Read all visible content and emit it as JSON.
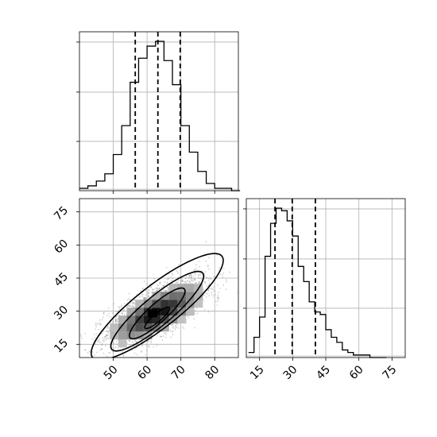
{
  "colors": {
    "background": "#ffffff",
    "line": "#000000",
    "grid": "#b0b0b0",
    "frame": "#000000",
    "scatter": "#7a7a7a"
  },
  "chart_data": [
    {
      "type": "histogram",
      "panel": "top-left",
      "variable_index": 0,
      "grid": true,
      "xlim": [
        40,
        87
      ],
      "x_ticks": [
        50,
        60,
        70,
        80
      ],
      "y_tick_labels_shown": false,
      "bin_edges": [
        40,
        42.5,
        45,
        47.5,
        50,
        52.5,
        55,
        57.5,
        60,
        62.5,
        65,
        67.5,
        70,
        72.5,
        75,
        77.5,
        80,
        82.5,
        85,
        87.5
      ],
      "counts": [
        1,
        2,
        4,
        7,
        15,
        27,
        45,
        55,
        60,
        62,
        54,
        44,
        27,
        16,
        8,
        3,
        1,
        1,
        0
      ],
      "quantiles": [
        56.5,
        63.2,
        69.8
      ]
    },
    {
      "type": "scatter_density",
      "panel": "bottom-left",
      "grid": true,
      "xlim": [
        40,
        87
      ],
      "ylim": [
        9,
        81
      ],
      "x_ticks": [
        50,
        60,
        70,
        80
      ],
      "y_ticks": [
        15,
        30,
        45,
        60,
        75
      ],
      "x_tick_labels": [
        "50",
        "60",
        "70",
        "80"
      ],
      "y_tick_labels": [
        "15",
        "30",
        "45",
        "60",
        "75"
      ],
      "center": [
        63,
        29
      ],
      "contour_levels": [
        {
          "rx": 18,
          "ry": 16,
          "angle": -38,
          "dy": 3
        },
        {
          "rx": 13,
          "ry": 11,
          "angle": -40,
          "dy": 1
        },
        {
          "rx": 8,
          "ry": 7,
          "angle": -42,
          "dy": 0
        },
        {
          "rx": 3.5,
          "ry": 3,
          "angle": -40,
          "dy": -2
        }
      ]
    },
    {
      "type": "histogram",
      "panel": "bottom-right",
      "variable_index": 1,
      "grid": true,
      "xlim": [
        9,
        81
      ],
      "x_ticks": [
        15,
        30,
        45,
        60,
        75
      ],
      "x_tick_labels": [
        "15",
        "30",
        "45",
        "60",
        "75"
      ],
      "y_tick_labels_shown": false,
      "bin_edges": [
        10,
        12.5,
        15,
        17.5,
        20,
        22.5,
        25,
        27.5,
        30,
        32.5,
        35,
        37.5,
        40,
        42.5,
        45,
        47.5,
        50,
        52.5,
        55,
        57.5,
        60,
        62.5,
        65,
        67.5,
        70,
        72.5
      ],
      "counts": [
        2,
        8,
        16,
        40,
        53,
        59,
        58,
        54,
        48,
        36,
        30,
        22,
        18,
        17,
        11,
        8,
        6,
        3,
        2,
        1,
        1,
        1,
        0,
        0,
        0
      ],
      "quantiles": [
        22.0,
        29.8,
        40.3
      ]
    }
  ]
}
